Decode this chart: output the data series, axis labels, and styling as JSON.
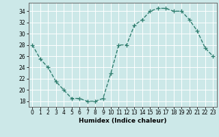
{
  "x": [
    0,
    1,
    2,
    3,
    4,
    5,
    6,
    7,
    8,
    9,
    10,
    11,
    12,
    13,
    14,
    15,
    16,
    17,
    18,
    19,
    20,
    21,
    22,
    23
  ],
  "y": [
    28,
    25.5,
    24,
    21.5,
    20,
    18.5,
    18.5,
    18,
    18,
    18.5,
    23,
    28,
    28,
    31.5,
    32.5,
    34,
    34.5,
    34.5,
    34,
    34,
    32.5,
    30.5,
    27.5,
    26
  ],
  "line_color": "#2e7d6e",
  "marker": "+",
  "marker_size": 4,
  "linewidth": 1.0,
  "bg_color": "#cce8e8",
  "grid_color": "#ffffff",
  "xlabel": "Humidex (Indice chaleur)",
  "ylim": [
    17,
    35.5
  ],
  "xlim": [
    -0.5,
    23.5
  ],
  "yticks": [
    18,
    20,
    22,
    24,
    26,
    28,
    30,
    32,
    34
  ],
  "xticks": [
    0,
    1,
    2,
    3,
    4,
    5,
    6,
    7,
    8,
    9,
    10,
    11,
    12,
    13,
    14,
    15,
    16,
    17,
    18,
    19,
    20,
    21,
    22,
    23
  ],
  "xlabel_fontsize": 6.5,
  "tick_fontsize": 5.5
}
